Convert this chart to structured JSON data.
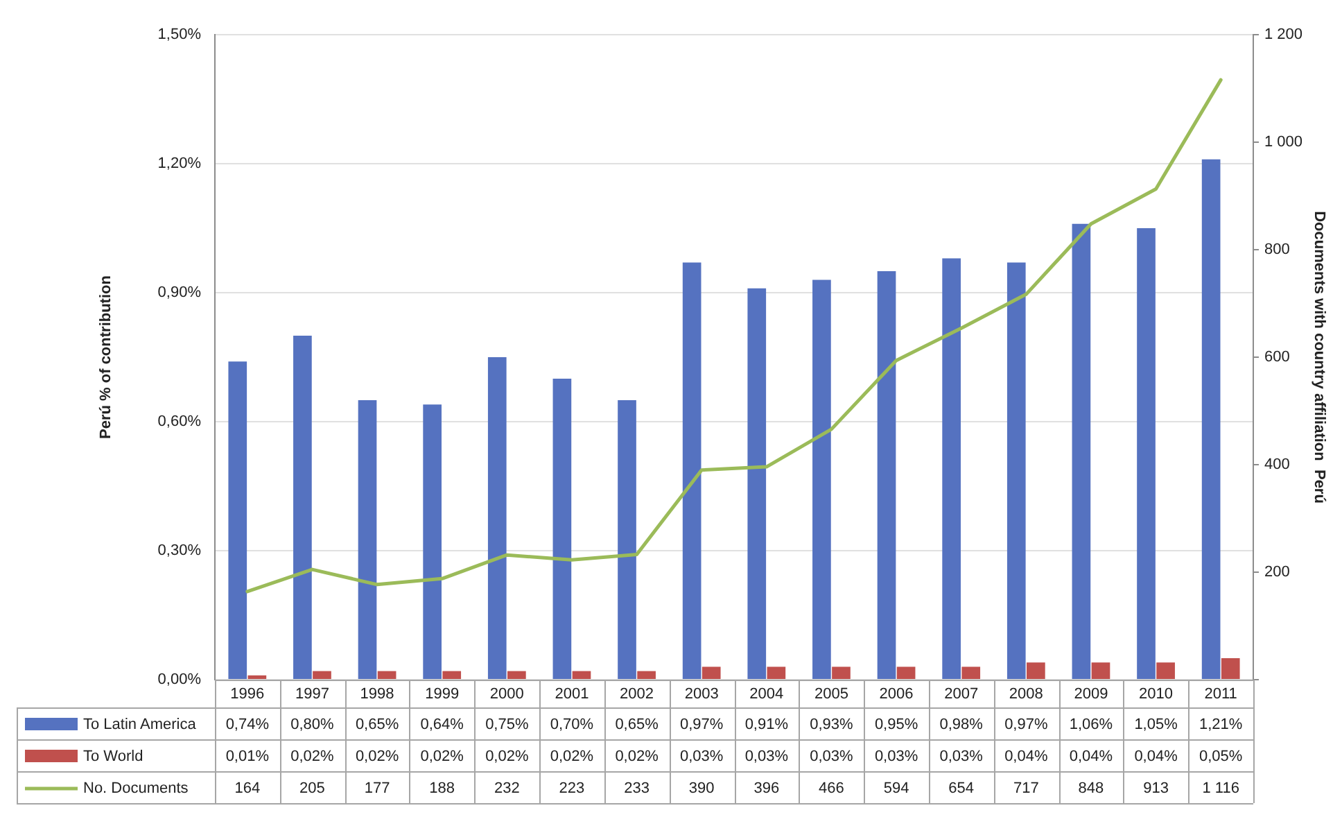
{
  "chart_data": {
    "type": "bar",
    "categories": [
      "1996",
      "1997",
      "1998",
      "1999",
      "2000",
      "2001",
      "2002",
      "2003",
      "2004",
      "2005",
      "2006",
      "2007",
      "2008",
      "2009",
      "2010",
      "2011"
    ],
    "series": [
      {
        "name": "To Latin America",
        "color": "#5572c0",
        "values": [
          0.74,
          0.8,
          0.65,
          0.64,
          0.75,
          0.7,
          0.65,
          0.97,
          0.91,
          0.93,
          0.95,
          0.98,
          0.97,
          1.06,
          1.05,
          1.21
        ],
        "value_labels": [
          "0,74%",
          "0,80%",
          "0,65%",
          "0,64%",
          "0,75%",
          "0,70%",
          "0,65%",
          "0,97%",
          "0,91%",
          "0,93%",
          "0,95%",
          "0,98%",
          "0,97%",
          "1,06%",
          "1,05%",
          "1,21%"
        ]
      },
      {
        "name": "To World",
        "color": "#c0504d",
        "values": [
          0.01,
          0.02,
          0.02,
          0.02,
          0.02,
          0.02,
          0.02,
          0.03,
          0.03,
          0.03,
          0.03,
          0.03,
          0.04,
          0.04,
          0.04,
          0.05
        ],
        "value_labels": [
          "0,01%",
          "0,02%",
          "0,02%",
          "0,02%",
          "0,02%",
          "0,02%",
          "0,02%",
          "0,03%",
          "0,03%",
          "0,03%",
          "0,03%",
          "0,03%",
          "0,04%",
          "0,04%",
          "0,04%",
          "0,05%"
        ]
      },
      {
        "name": "No. Documents",
        "type": "line",
        "axis": "y2",
        "color": "#9bbb59",
        "values": [
          164,
          205,
          177,
          188,
          232,
          223,
          233,
          390,
          396,
          466,
          594,
          654,
          717,
          848,
          913,
          1116
        ],
        "value_labels": [
          "164",
          "205",
          "177",
          "188",
          "232",
          "223",
          "233",
          "390",
          "396",
          "466",
          "594",
          "654",
          "717",
          "848",
          "913",
          "1 116"
        ]
      }
    ],
    "ylabel": "Perú % of contribution",
    "y2label": "Documents with country affiliation  Perú",
    "ylim": [
      0,
      1.5
    ],
    "yticks": [
      {
        "value": 0,
        "label": "0,00%"
      },
      {
        "value": 0.3,
        "label": "0,30%"
      },
      {
        "value": 0.6,
        "label": "0,60%"
      },
      {
        "value": 0.9,
        "label": "0,90%"
      },
      {
        "value": 1.2,
        "label": "1,20%"
      },
      {
        "value": 1.5,
        "label": "1,50%"
      }
    ],
    "y2lim": [
      0,
      1200
    ],
    "y2ticks": [
      {
        "value": 0,
        "label": null
      },
      200,
      400,
      600,
      800,
      {
        "value": 1000,
        "label": "1 000"
      },
      {
        "value": 1200,
        "label": "1 200"
      }
    ],
    "grid": "y",
    "legend": "bottom",
    "marker": "none",
    "line_style": "solid"
  }
}
